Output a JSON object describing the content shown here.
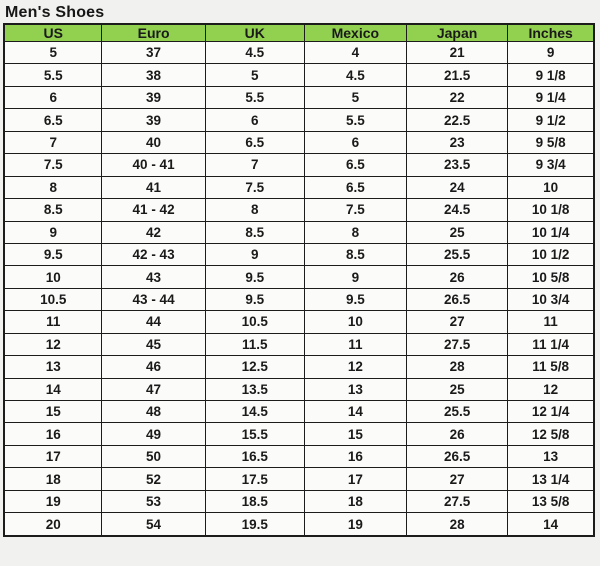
{
  "title": "Men's Shoes",
  "colors": {
    "header_bg": "#92D050",
    "border": "#1c1c1c",
    "page_bg": "#f1f1ef",
    "cell_bg": "#fbfbf9",
    "text": "#1a1a1a"
  },
  "chart_data": {
    "type": "table",
    "title": "Men's Shoes",
    "columns": [
      "US",
      "Euro",
      "UK",
      "Mexico",
      "Japan",
      "Inches"
    ],
    "column_widths_percent": [
      16.6,
      17.5,
      16.8,
      17.3,
      17.2,
      14.6
    ],
    "rows": [
      [
        "5",
        "37",
        "4.5",
        "4",
        "21",
        "9"
      ],
      [
        "5.5",
        "38",
        "5",
        "4.5",
        "21.5",
        "9 1/8"
      ],
      [
        "6",
        "39",
        "5.5",
        "5",
        "22",
        "9 1/4"
      ],
      [
        "6.5",
        "39",
        "6",
        "5.5",
        "22.5",
        "9 1/2"
      ],
      [
        "7",
        "40",
        "6.5",
        "6",
        "23",
        "9 5/8"
      ],
      [
        "7.5",
        "40 - 41",
        "7",
        "6.5",
        "23.5",
        "9 3/4"
      ],
      [
        "8",
        "41",
        "7.5",
        "6.5",
        "24",
        "10"
      ],
      [
        "8.5",
        "41 - 42",
        "8",
        "7.5",
        "24.5",
        "10 1/8"
      ],
      [
        "9",
        "42",
        "8.5",
        "8",
        "25",
        "10 1/4"
      ],
      [
        "9.5",
        "42 - 43",
        "9",
        "8.5",
        "25.5",
        "10 1/2"
      ],
      [
        "10",
        "43",
        "9.5",
        "9",
        "26",
        "10 5/8"
      ],
      [
        "10.5",
        "43 - 44",
        "9.5",
        "9.5",
        "26.5",
        "10 3/4"
      ],
      [
        "11",
        "44",
        "10.5",
        "10",
        "27",
        "11"
      ],
      [
        "12",
        "45",
        "11.5",
        "11",
        "27.5",
        "11 1/4"
      ],
      [
        "13",
        "46",
        "12.5",
        "12",
        "28",
        "11 5/8"
      ],
      [
        "14",
        "47",
        "13.5",
        "13",
        "25",
        "12"
      ],
      [
        "15",
        "48",
        "14.5",
        "14",
        "25.5",
        "12 1/4"
      ],
      [
        "16",
        "49",
        "15.5",
        "15",
        "26",
        "12 5/8"
      ],
      [
        "17",
        "50",
        "16.5",
        "16",
        "26.5",
        "13"
      ],
      [
        "18",
        "52",
        "17.5",
        "17",
        "27",
        "13 1/4"
      ],
      [
        "19",
        "53",
        "18.5",
        "18",
        "27.5",
        "13 5/8"
      ],
      [
        "20",
        "54",
        "19.5",
        "19",
        "28",
        "14"
      ]
    ]
  }
}
